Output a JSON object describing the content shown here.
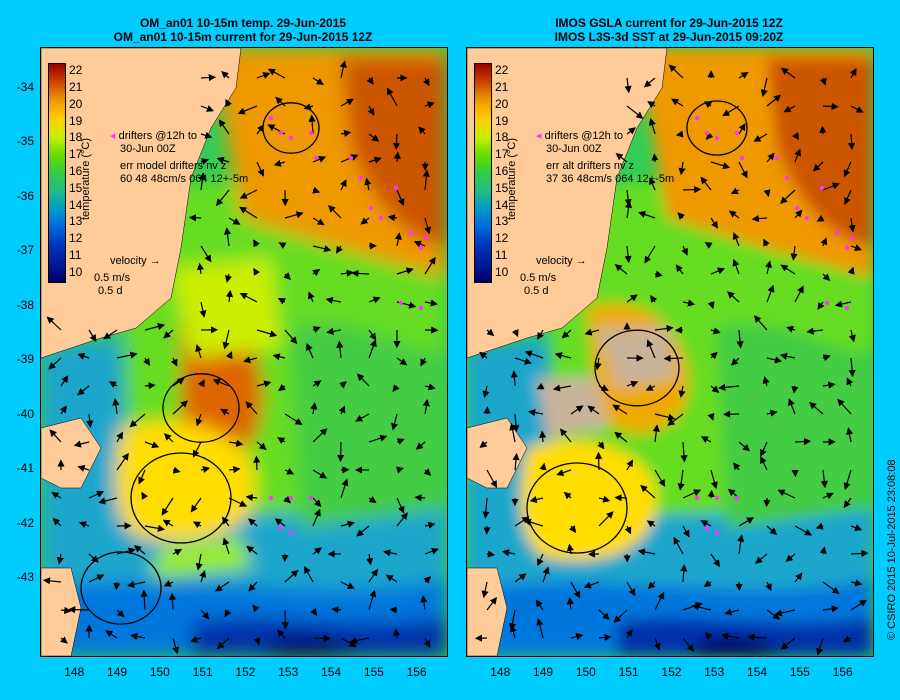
{
  "panels": [
    {
      "id": "left",
      "title_line1": "OM_an01 10-15m temp. 29-Jun-2015",
      "title_line2": "OM_an01 10-15m current for 29-Jun-2015 12Z",
      "drifters_label": "drifters @12h to",
      "drifters_date": "30-Jun 00Z",
      "err_label": "err model drifters nv z",
      "err_values": "60 48 48cm/s 064 12+-5m",
      "velocity_label": "velocity",
      "velocity_scale": "0.5 m/s",
      "velocity_time": "0.5 d"
    },
    {
      "id": "right",
      "title_line1": "IMOS GSLA current for 29-Jun-2015 12Z",
      "title_line2": "IMOS L3S-3d SST at 29-Jun-2015 09:20Z",
      "drifters_label": "drifters @12h to",
      "drifters_date": "30-Jun 00Z",
      "err_label": "err alt drifters nv z",
      "err_values": "37 36 48cm/s 064 12+-5m",
      "velocity_label": "velocity",
      "velocity_scale": "0.5 m/s",
      "velocity_time": "0.5 d"
    }
  ],
  "colorbar": {
    "label": "temperature (°C)",
    "ticks": [
      "22",
      "21",
      "20",
      "19",
      "18",
      "17",
      "16",
      "15",
      "14",
      "13",
      "12",
      "11",
      "10"
    ],
    "colors": [
      "#990000",
      "#cc4400",
      "#ee9900",
      "#ffcc00",
      "#ccee00",
      "#66dd00",
      "#33cc44",
      "#22bb88",
      "#0099cc",
      "#0066dd",
      "#0033bb",
      "#001a99",
      "#000066"
    ]
  },
  "axes": {
    "lat_ticks": [
      "-34",
      "-35",
      "-36",
      "-37",
      "-38",
      "-39",
      "-40",
      "-41",
      "-42",
      "-43"
    ],
    "lon_ticks": [
      "148",
      "149",
      "150",
      "151",
      "152",
      "153",
      "154",
      "155",
      "156"
    ]
  },
  "copyright": "© CSIRO 2015   10-Jul-2015 23:08:08",
  "colors": {
    "background": "#00ccff",
    "land": "#ffcc99",
    "drifter": "#ff33ff",
    "missing_data": "#c8b49a"
  }
}
